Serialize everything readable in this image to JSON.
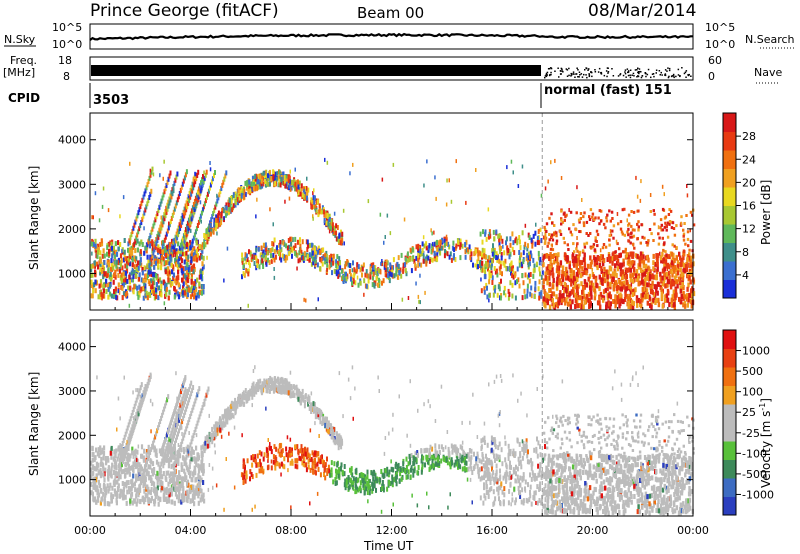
{
  "header": {
    "station": "Prince George (fitACF)",
    "beam": "Beam 00",
    "date": "08/Mar/2014"
  },
  "top_panels": {
    "nsky_label": "N.Sky",
    "nsky_ticks": [
      "10^5",
      "10^0"
    ],
    "nsearch_label": "N.Search",
    "nsearch_ticks": [
      "10^5",
      "10^0"
    ],
    "freq_label_1": "Freq.",
    "freq_label_2": "[MHz]",
    "freq_ticks": [
      "18",
      "8"
    ],
    "nave_label": "Nave",
    "nave_ticks": [
      "60",
      "0"
    ],
    "cpid_label": "CPID",
    "cpid_value_1": "3503",
    "cpid_value_2": "normal (fast) 151"
  },
  "chart_data": [
    {
      "type": "heatmap",
      "panel": "power",
      "xlabel": "",
      "ylabel": "Slant Range [km]",
      "xlim_hours": [
        0,
        24
      ],
      "ylim": [
        180,
        4600
      ],
      "y_ticks": [
        1000,
        2000,
        3000,
        4000
      ],
      "colorbar_label": "Power [dB]",
      "colorbar_ticks": [
        4,
        8,
        12,
        16,
        20,
        24,
        28
      ],
      "colorbar_colors": [
        "#1a2fd8",
        "#3b6fd0",
        "#3f8f8a",
        "#5fb85a",
        "#a8c832",
        "#e8d820",
        "#f0a020",
        "#f07010",
        "#e83a12",
        "#d81818"
      ],
      "mode_change_hour": 18.0
    },
    {
      "type": "heatmap",
      "panel": "velocity",
      "xlabel": "Time UT",
      "ylabel": "Slant Range [km]",
      "xlim_hours": [
        0,
        24
      ],
      "x_ticks": [
        "00:00",
        "04:00",
        "08:00",
        "12:00",
        "16:00",
        "20:00",
        "00:00"
      ],
      "ylim": [
        180,
        4600
      ],
      "y_ticks": [
        1000,
        2000,
        3000,
        4000
      ],
      "colorbar_label": "Velocity [m s^-1]",
      "colorbar_ticks": [
        1000,
        500,
        100,
        25,
        -25,
        -100,
        -500,
        -1000
      ],
      "colorbar_colors": [
        "#2b3fbf",
        "#3d6cc2",
        "#3d8a5a",
        "#58c03a",
        "#bcbcbc",
        "#bcbcbc",
        "#f0a020",
        "#f07010",
        "#e84012",
        "#e01010"
      ],
      "mode_change_hour": 18.0
    }
  ]
}
